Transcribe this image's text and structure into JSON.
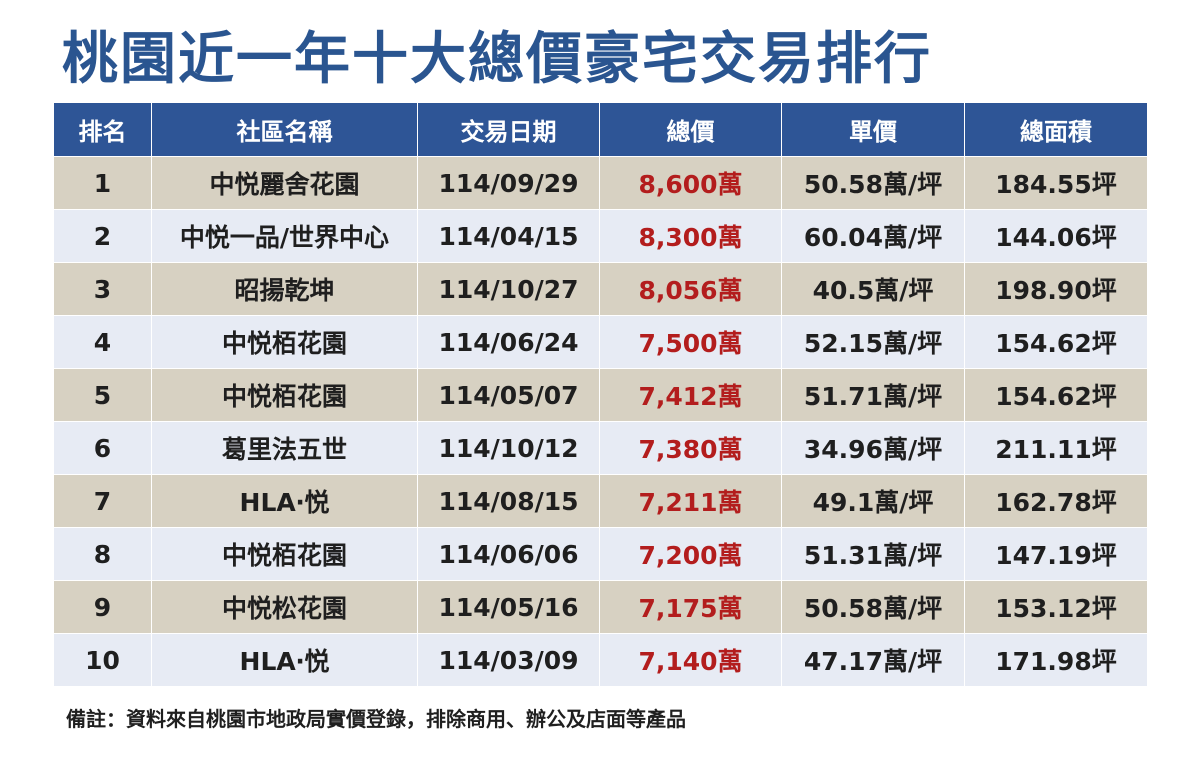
{
  "title": "桃園近一年十大總價豪宅交易排行",
  "headers": [
    "排名",
    "社區名稱",
    "交易日期",
    "總價",
    "單價",
    "總面積"
  ],
  "rows": [
    {
      "rank": "1",
      "name": "中悦麗舍花園",
      "date": "114/09/29",
      "price": "8,600萬",
      "unit": "50.58萬/坪",
      "area": "184.55坪"
    },
    {
      "rank": "2",
      "name": "中悦一品/世界中心",
      "date": "114/04/15",
      "price": "8,300萬",
      "unit": "60.04萬/坪",
      "area": "144.06坪"
    },
    {
      "rank": "3",
      "name": "昭揚乾坤",
      "date": "114/10/27",
      "price": "8,056萬",
      "unit": "40.5萬/坪",
      "area": "198.90坪"
    },
    {
      "rank": "4",
      "name": "中悦栢花園",
      "date": "114/06/24",
      "price": "7,500萬",
      "unit": "52.15萬/坪",
      "area": "154.62坪"
    },
    {
      "rank": "5",
      "name": "中悦栢花園",
      "date": "114/05/07",
      "price": "7,412萬",
      "unit": "51.71萬/坪",
      "area": "154.62坪"
    },
    {
      "rank": "6",
      "name": "葛里法五世",
      "date": "114/10/12",
      "price": "7,380萬",
      "unit": "34.96萬/坪",
      "area": "211.11坪"
    },
    {
      "rank": "7",
      "name": "HLA‧悦",
      "date": "114/08/15",
      "price": "7,211萬",
      "unit": "49.1萬/坪",
      "area": "162.78坪"
    },
    {
      "rank": "8",
      "name": "中悦栢花園",
      "date": "114/06/06",
      "price": "7,200萬",
      "unit": "51.31萬/坪",
      "area": "147.19坪"
    },
    {
      "rank": "9",
      "name": "中悦松花園",
      "date": "114/05/16",
      "price": "7,175萬",
      "unit": "50.58萬/坪",
      "area": "153.12坪"
    },
    {
      "rank": "10",
      "name": "HLA‧悦",
      "date": "114/03/09",
      "price": "7,140萬",
      "unit": "47.17萬/坪",
      "area": "171.98坪"
    }
  ],
  "note": "備註：資料來自桃園市地政局實價登錄，排除商用、辦公及店面等產品",
  "colors": {
    "title": "#2a5590",
    "header_bg": "#2e5596",
    "row_odd": "#d7d1c2",
    "row_even": "#e7ebf4",
    "price_text": "#b31d1d"
  }
}
